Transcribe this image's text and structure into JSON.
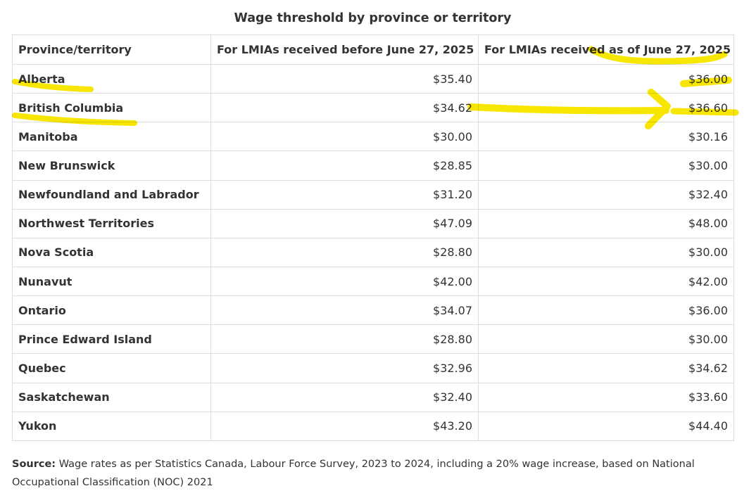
{
  "page": {
    "title": "Wage threshold by province or territory"
  },
  "table": {
    "headers": {
      "province": "Province/territory",
      "before": "For LMIAs received before June 27, 2025",
      "as_of": "For LMIAs received as of June 27, 2025"
    },
    "rows": [
      {
        "province": "Alberta",
        "before": "$35.40",
        "as_of": "$36.00"
      },
      {
        "province": "British Columbia",
        "before": "$34.62",
        "as_of": "$36.60"
      },
      {
        "province": "Manitoba",
        "before": "$30.00",
        "as_of": "$30.16"
      },
      {
        "province": "New Brunswick",
        "before": "$28.85",
        "as_of": "$30.00"
      },
      {
        "province": "Newfoundland and Labrador",
        "before": "$31.20",
        "as_of": "$32.40"
      },
      {
        "province": "Northwest Territories",
        "before": "$47.09",
        "as_of": "$48.00"
      },
      {
        "province": "Nova Scotia",
        "before": "$28.80",
        "as_of": "$30.00"
      },
      {
        "province": "Nunavut",
        "before": "$42.00",
        "as_of": "$42.00"
      },
      {
        "province": "Ontario",
        "before": "$34.07",
        "as_of": "$36.00"
      },
      {
        "province": "Prince Edward Island",
        "before": "$28.80",
        "as_of": "$30.00"
      },
      {
        "province": "Quebec",
        "before": "$32.96",
        "as_of": "$34.62"
      },
      {
        "province": "Saskatchewan",
        "before": "$32.40",
        "as_of": "$33.60"
      },
      {
        "province": "Yukon",
        "before": "$43.20",
        "as_of": "$44.40"
      }
    ]
  },
  "source": {
    "label": "Source:",
    "text": "Wage rates as per Statistics Canada, Labour Force Survey, 2023 to 2024, including a 20% wage increase, based on National Occupational Classification (NOC) 2021"
  },
  "colors": {
    "text": "#333333",
    "border": "#dddddd",
    "highlighter": "#f7e600"
  }
}
